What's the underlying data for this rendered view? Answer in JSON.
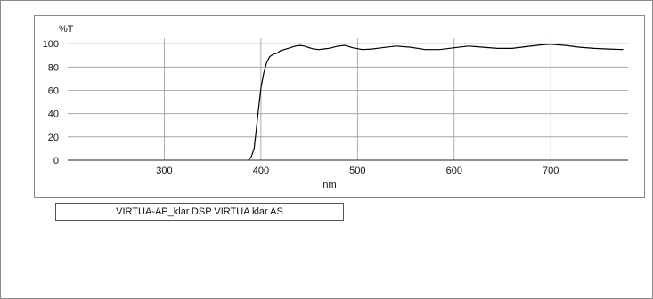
{
  "chart_data": {
    "type": "line",
    "title": "",
    "xlabel": "nm",
    "ylabel": "%T",
    "xlim": [
      200,
      780
    ],
    "ylim": [
      0,
      120
    ],
    "x_ticks": [
      300,
      400,
      500,
      600,
      700
    ],
    "y_ticks": [
      0,
      20,
      40,
      60,
      80,
      100
    ],
    "grid": true,
    "legend_position": "bottom-left",
    "series": [
      {
        "name": "VIRTUA-AP_klar.DSP VIRTUA klar AS",
        "color": "#000000",
        "points": [
          [
            387,
            0
          ],
          [
            390,
            3
          ],
          [
            393,
            10
          ],
          [
            395,
            25
          ],
          [
            397,
            40
          ],
          [
            400,
            62
          ],
          [
            403,
            75
          ],
          [
            406,
            84
          ],
          [
            409,
            89
          ],
          [
            413,
            91
          ],
          [
            417,
            92
          ],
          [
            420,
            94
          ],
          [
            424,
            95
          ],
          [
            428,
            96
          ],
          [
            432,
            97
          ],
          [
            436,
            98
          ],
          [
            440,
            98.5
          ],
          [
            445,
            98
          ],
          [
            450,
            96.5
          ],
          [
            455,
            95.5
          ],
          [
            460,
            95
          ],
          [
            470,
            96
          ],
          [
            480,
            98
          ],
          [
            487,
            98.5
          ],
          [
            495,
            96.5
          ],
          [
            505,
            95
          ],
          [
            515,
            95.5
          ],
          [
            525,
            96.5
          ],
          [
            540,
            98
          ],
          [
            555,
            97
          ],
          [
            570,
            95
          ],
          [
            585,
            95
          ],
          [
            600,
            96.5
          ],
          [
            615,
            98
          ],
          [
            630,
            97
          ],
          [
            645,
            96
          ],
          [
            660,
            96
          ],
          [
            675,
            97.5
          ],
          [
            690,
            99
          ],
          [
            700,
            99.5
          ],
          [
            715,
            98.5
          ],
          [
            730,
            97
          ],
          [
            745,
            96
          ],
          [
            760,
            95.5
          ],
          [
            775,
            95
          ]
        ]
      }
    ]
  },
  "legend": {
    "text": "VIRTUA-AP_klar.DSP VIRTUA klar AS"
  }
}
